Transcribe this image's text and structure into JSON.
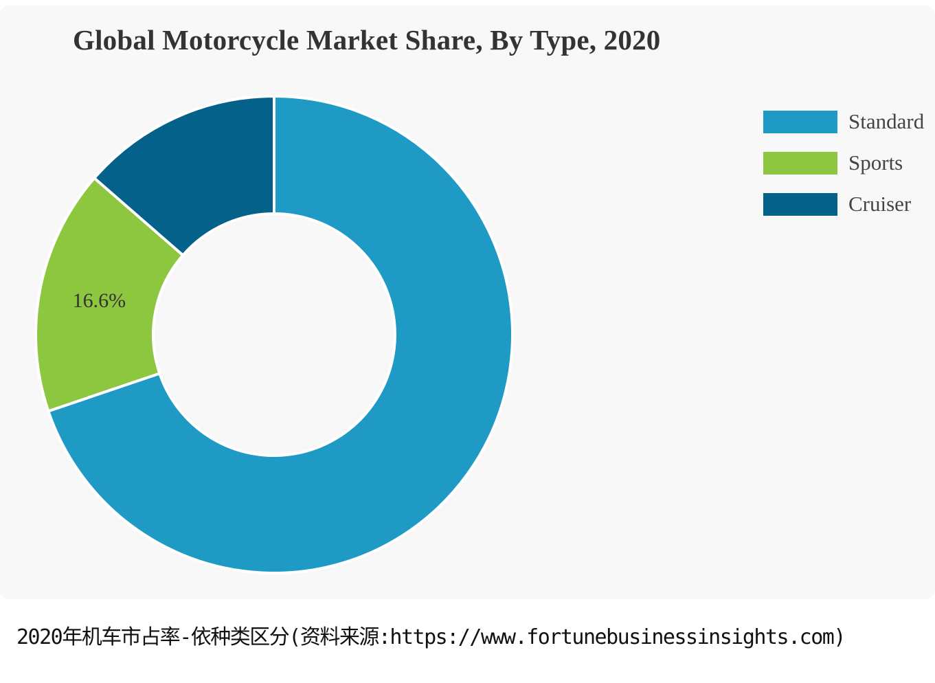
{
  "chart_data": {
    "type": "pie",
    "title": "Global Motorcycle Market Share, By Type, 2020",
    "donut": true,
    "legend_placement": "top-right",
    "categories": [
      "Standard",
      "Sports",
      "Cruiser"
    ],
    "values": [
      69.8,
      16.6,
      13.6
    ],
    "data_labels": [
      "",
      "16.6%",
      ""
    ],
    "colors": [
      "#1e9ac5",
      "#8dc63f",
      "#046189"
    ]
  },
  "caption": "2020年机车市占率-依种类区分(资料来源:https://www.fortunebusinessinsights.com)"
}
